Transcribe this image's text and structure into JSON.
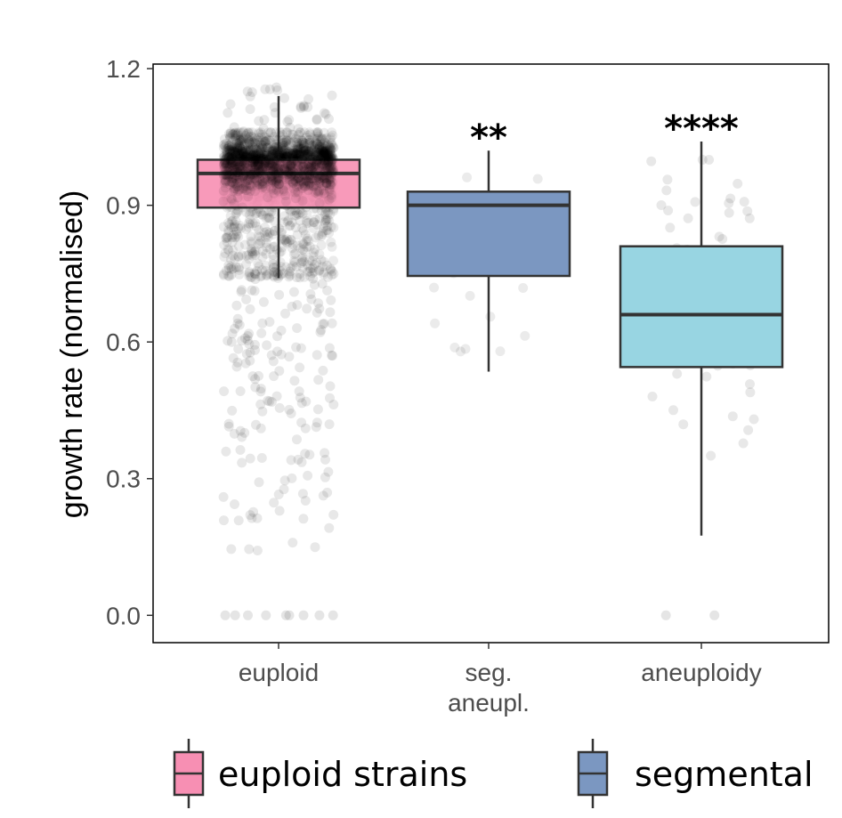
{
  "chart_data": {
    "type": "box",
    "ylabel": "growth rate (normalised)",
    "xlabel": "",
    "ylim": [
      -0.06,
      1.21
    ],
    "y_ticks": [
      "0.0",
      "0.3",
      "0.6",
      "0.9",
      "1.2"
    ],
    "y_tick_values": [
      0.0,
      0.3,
      0.6,
      0.9,
      1.2
    ],
    "grid": false,
    "categories": [
      "euploid",
      "seg.\naneupl.",
      "aneuploidy"
    ],
    "boxes": [
      {
        "category": "euploid",
        "whisker_low": 0.74,
        "q1": 0.895,
        "median": 0.97,
        "q3": 1.0,
        "whisker_high": 1.14,
        "color": "#F78FB3",
        "significance": ""
      },
      {
        "category": "seg. aneupl.",
        "whisker_low": 0.535,
        "q1": 0.745,
        "median": 0.9,
        "q3": 0.93,
        "whisker_high": 1.02,
        "color": "#7B97C1",
        "significance": "**"
      },
      {
        "category": "aneuploidy",
        "whisker_low": 0.175,
        "q1": 0.545,
        "median": 0.66,
        "q3": 0.81,
        "whisker_high": 1.04,
        "color": "#98D5E2",
        "significance": "****"
      }
    ],
    "legend": {
      "position": "bottom",
      "entries": [
        {
          "label": "euploid strains",
          "color": "#F78FB3"
        },
        {
          "label": "segmental",
          "color": "#7B97C1"
        }
      ]
    },
    "colors": {
      "box_outline": "#333333",
      "points": "#000000",
      "panel_border": "#000000"
    }
  }
}
